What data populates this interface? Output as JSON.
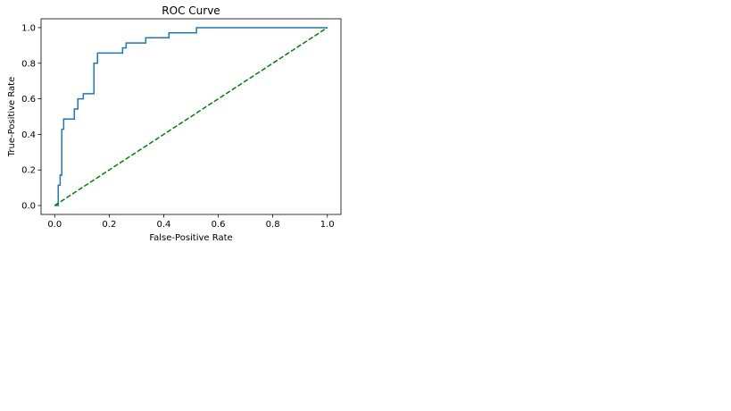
{
  "chart_data": {
    "type": "line",
    "title": "ROC Curve",
    "xlabel": "False-Positive Rate",
    "ylabel": "True-Positive Rate",
    "xlim": [
      -0.05,
      1.05
    ],
    "ylim": [
      -0.05,
      1.05
    ],
    "xticks": [
      0.0,
      0.2,
      0.4,
      0.6,
      0.8,
      1.0
    ],
    "xtick_labels": [
      "0.0",
      "0.2",
      "0.4",
      "0.6",
      "0.8",
      "1.0"
    ],
    "yticks": [
      0.0,
      0.2,
      0.4,
      0.6,
      0.8,
      1.0
    ],
    "ytick_labels": [
      "0.0",
      "0.2",
      "0.4",
      "0.6",
      "0.8",
      "1.0"
    ],
    "grid": false,
    "series": [
      {
        "style": "solid",
        "color": "#1f77b4",
        "x": [
          0.0,
          0.013,
          0.013,
          0.02,
          0.02,
          0.026,
          0.026,
          0.033,
          0.033,
          0.046,
          0.046,
          0.072,
          0.072,
          0.085,
          0.085,
          0.098,
          0.098,
          0.105,
          0.105,
          0.144,
          0.144,
          0.157,
          0.157,
          0.249,
          0.249,
          0.262,
          0.262,
          0.334,
          0.334,
          0.419,
          0.419,
          0.52,
          0.52,
          1.0
        ],
        "y": [
          0.0,
          0.0,
          0.114,
          0.114,
          0.171,
          0.171,
          0.429,
          0.429,
          0.486,
          0.486,
          0.486,
          0.486,
          0.543,
          0.543,
          0.6,
          0.6,
          0.6,
          0.6,
          0.629,
          0.629,
          0.8,
          0.8,
          0.857,
          0.857,
          0.886,
          0.886,
          0.914,
          0.914,
          0.943,
          0.943,
          0.971,
          0.971,
          1.0,
          1.0
        ]
      },
      {
        "style": "dashed",
        "color": "#008000",
        "x": [
          0.0,
          1.0
        ],
        "y": [
          0.0,
          1.0
        ]
      }
    ]
  }
}
